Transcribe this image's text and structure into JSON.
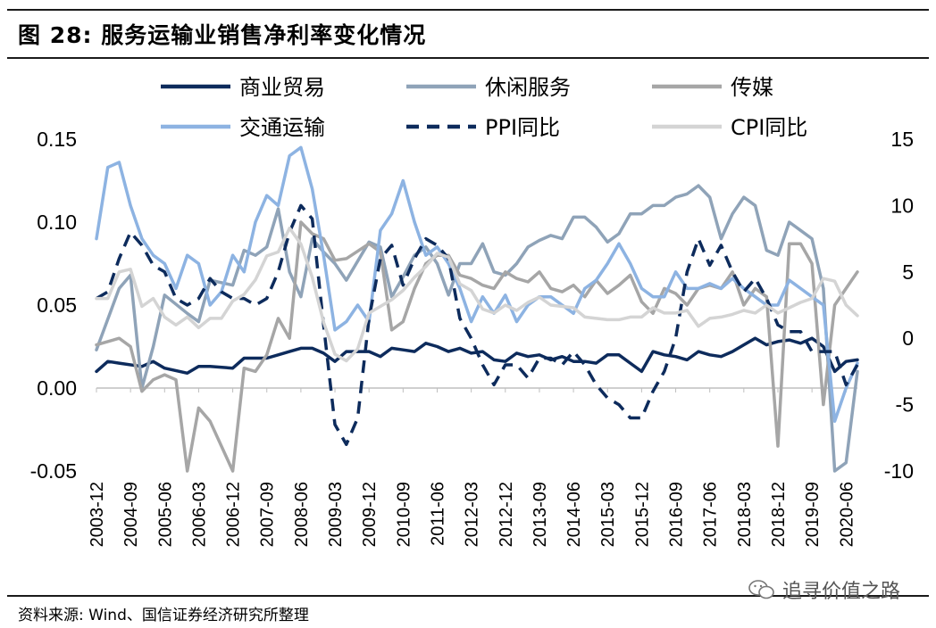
{
  "header": {
    "title": "图 28:  服务运输业销售净利率变化情况"
  },
  "footer": {
    "source": "资料来源: Wind、国信证券经济研究所整理",
    "watermark": "追寻价值之路",
    "watermark_icon": "wechat-icon"
  },
  "chart_data": {
    "type": "line",
    "x_tick_labels": [
      "2003-12",
      "2004-09",
      "2005-06",
      "2006-03",
      "2006-12",
      "2007-09",
      "2008-06",
      "2009-03",
      "2009-12",
      "2010-09",
      "2011-06",
      "2012-03",
      "2012-12",
      "2013-09",
      "2014-06",
      "2015-03",
      "2015-12",
      "2016-09",
      "2017-06",
      "2018-03",
      "2018-12",
      "2019-09",
      "2020-06"
    ],
    "x_start": "2003-12",
    "x_end": "2020-09",
    "y_left_ticks": [
      "0.15",
      "0.10",
      "0.05",
      "0.00",
      "-0.05"
    ],
    "y_left_range": [
      -0.05,
      0.15
    ],
    "y_right_ticks": [
      "15",
      "10",
      "5",
      "0",
      "-5",
      "-10"
    ],
    "y_right_range": [
      -10,
      15
    ],
    "grid": false,
    "legend_position": "top",
    "series": [
      {
        "name": "商业贸易",
        "axis": "left",
        "color": "#0d2b5c",
        "dash": "solid",
        "x": [
          "2003-12",
          "2004-03",
          "2004-06",
          "2004-12",
          "2005-03",
          "2005-06",
          "2005-12",
          "2006-03",
          "2006-06",
          "2006-12",
          "2007-03",
          "2007-06",
          "2007-09",
          "2007-12",
          "2008-03",
          "2008-06",
          "2008-09",
          "2008-12",
          "2009-03",
          "2009-06",
          "2009-12",
          "2010-03",
          "2010-06",
          "2010-09",
          "2010-12",
          "2011-03",
          "2011-06",
          "2011-09",
          "2011-12",
          "2012-03",
          "2012-06",
          "2012-09",
          "2012-12",
          "2013-03",
          "2013-06",
          "2013-09",
          "2013-12",
          "2014-03",
          "2014-06",
          "2014-09",
          "2014-12",
          "2015-03",
          "2015-06",
          "2015-09",
          "2015-12",
          "2016-03",
          "2016-06",
          "2016-09",
          "2016-12",
          "2017-03",
          "2017-06",
          "2017-09",
          "2017-12",
          "2018-03",
          "2018-06",
          "2018-09",
          "2018-12",
          "2019-03",
          "2019-06",
          "2019-09",
          "2019-12",
          "2020-03",
          "2020-06",
          "2020-09"
        ],
        "y": [
          0.01,
          0.016,
          0.015,
          0.013,
          0.016,
          0.012,
          0.009,
          0.013,
          0.013,
          0.012,
          0.018,
          0.018,
          0.018,
          0.02,
          0.022,
          0.024,
          0.024,
          0.021,
          0.016,
          0.022,
          0.022,
          0.019,
          0.024,
          0.023,
          0.022,
          0.027,
          0.025,
          0.022,
          0.024,
          0.021,
          0.022,
          0.017,
          0.016,
          0.021,
          0.019,
          0.02,
          0.017,
          0.019,
          0.016,
          0.016,
          0.015,
          0.02,
          0.02,
          0.015,
          0.01,
          0.022,
          0.02,
          0.019,
          0.017,
          0.022,
          0.02,
          0.019,
          0.022,
          0.026,
          0.03,
          0.026,
          0.028,
          0.029,
          0.027,
          0.03,
          0.025,
          0.01,
          0.016,
          0.017
        ]
      },
      {
        "name": "休闲服务",
        "axis": "left",
        "color": "#8fa3b8",
        "dash": "solid",
        "x": [
          "2003-12",
          "2004-06",
          "2004-09",
          "2004-12",
          "2005-03",
          "2005-06",
          "2005-12",
          "2006-03",
          "2006-06",
          "2006-12",
          "2007-03",
          "2007-06",
          "2007-09",
          "2007-12",
          "2008-03",
          "2008-06",
          "2008-09",
          "2008-12",
          "2009-03",
          "2009-06",
          "2009-12",
          "2010-03",
          "2010-06",
          "2010-09",
          "2010-12",
          "2011-03",
          "2011-06",
          "2011-09",
          "2011-12",
          "2012-03",
          "2012-06",
          "2012-09",
          "2012-12",
          "2013-03",
          "2013-06",
          "2013-09",
          "2013-12",
          "2014-03",
          "2014-06",
          "2014-09",
          "2014-12",
          "2015-03",
          "2015-06",
          "2015-09",
          "2015-12",
          "2016-03",
          "2016-06",
          "2016-09",
          "2016-12",
          "2017-03",
          "2017-06",
          "2017-09",
          "2017-12",
          "2018-03",
          "2018-06",
          "2018-09",
          "2018-12",
          "2019-03",
          "2019-06",
          "2019-09",
          "2019-12",
          "2020-03",
          "2020-06",
          "2020-09"
        ],
        "y": [
          0.023,
          0.06,
          0.068,
          0.0,
          0.025,
          0.056,
          0.045,
          0.04,
          0.065,
          0.062,
          0.083,
          0.08,
          0.085,
          0.108,
          0.07,
          0.055,
          0.09,
          0.082,
          0.075,
          0.065,
          0.088,
          0.085,
          0.055,
          0.067,
          0.08,
          0.085,
          0.075,
          0.056,
          0.075,
          0.075,
          0.087,
          0.07,
          0.068,
          0.075,
          0.085,
          0.089,
          0.092,
          0.09,
          0.103,
          0.103,
          0.097,
          0.088,
          0.093,
          0.105,
          0.105,
          0.11,
          0.11,
          0.115,
          0.117,
          0.122,
          0.115,
          0.09,
          0.105,
          0.115,
          0.11,
          0.083,
          0.08,
          0.1,
          0.095,
          0.09,
          0.06,
          -0.05,
          -0.045,
          0.01
        ]
      },
      {
        "name": "传媒",
        "axis": "left",
        "color": "#a6a6a6",
        "dash": "solid",
        "x": [
          "2003-12",
          "2004-06",
          "2004-09",
          "2004-12",
          "2005-03",
          "2005-06",
          "2005-09",
          "2005-12",
          "2006-03",
          "2006-06",
          "2006-12",
          "2007-03",
          "2007-06",
          "2007-09",
          "2007-12",
          "2008-03",
          "2008-06",
          "2008-09",
          "2008-12",
          "2009-03",
          "2009-06",
          "2009-12",
          "2010-03",
          "2010-06",
          "2010-09",
          "2010-12",
          "2011-03",
          "2011-06",
          "2011-09",
          "2011-12",
          "2012-03",
          "2012-06",
          "2012-09",
          "2012-12",
          "2013-03",
          "2013-06",
          "2013-09",
          "2013-12",
          "2014-03",
          "2014-06",
          "2014-09",
          "2014-12",
          "2015-03",
          "2015-06",
          "2015-09",
          "2015-12",
          "2016-03",
          "2016-06",
          "2016-09",
          "2016-12",
          "2017-03",
          "2017-06",
          "2017-09",
          "2017-12",
          "2018-03",
          "2018-06",
          "2018-09",
          "2018-12",
          "2019-03",
          "2019-06",
          "2019-09",
          "2019-12",
          "2020-03",
          "2020-06",
          "2020-09"
        ],
        "y": [
          0.026,
          0.03,
          0.025,
          -0.002,
          0.005,
          0.008,
          0.005,
          -0.05,
          -0.012,
          -0.02,
          -0.05,
          0.012,
          0.01,
          0.02,
          0.042,
          0.03,
          0.1,
          0.093,
          0.09,
          0.077,
          0.078,
          0.087,
          0.082,
          0.035,
          0.04,
          0.06,
          0.075,
          0.08,
          0.08,
          0.068,
          0.066,
          0.062,
          0.06,
          0.07,
          0.066,
          0.064,
          0.07,
          0.06,
          0.058,
          0.062,
          0.055,
          0.065,
          0.057,
          0.062,
          0.068,
          0.052,
          0.045,
          0.06,
          0.057,
          0.05,
          0.06,
          0.062,
          0.06,
          0.07,
          0.05,
          0.06,
          0.055,
          -0.035,
          0.087,
          0.087,
          0.075,
          -0.01,
          0.05,
          0.06,
          0.07
        ]
      },
      {
        "name": "交通运输",
        "axis": "left",
        "color": "#8db3e2",
        "dash": "solid",
        "x": [
          "2003-12",
          "2004-03",
          "2004-06",
          "2004-09",
          "2004-12",
          "2005-03",
          "2005-06",
          "2005-09",
          "2005-12",
          "2006-03",
          "2006-06",
          "2006-09",
          "2006-12",
          "2007-03",
          "2007-06",
          "2007-09",
          "2007-12",
          "2008-03",
          "2008-06",
          "2008-09",
          "2008-12",
          "2009-03",
          "2009-06",
          "2009-09",
          "2009-12",
          "2010-03",
          "2010-06",
          "2010-09",
          "2010-12",
          "2011-03",
          "2011-06",
          "2011-09",
          "2011-12",
          "2012-03",
          "2012-06",
          "2012-09",
          "2012-12",
          "2013-03",
          "2013-06",
          "2013-09",
          "2013-12",
          "2014-03",
          "2014-06",
          "2014-09",
          "2014-12",
          "2015-03",
          "2015-06",
          "2015-09",
          "2015-12",
          "2016-03",
          "2016-06",
          "2016-09",
          "2016-12",
          "2017-03",
          "2017-06",
          "2017-09",
          "2017-12",
          "2018-03",
          "2018-06",
          "2018-09",
          "2018-12",
          "2019-03",
          "2019-06",
          "2019-09",
          "2019-12",
          "2020-03",
          "2020-06",
          "2020-09"
        ],
        "y": [
          0.09,
          0.133,
          0.136,
          0.11,
          0.09,
          0.08,
          0.075,
          0.06,
          0.08,
          0.075,
          0.05,
          0.058,
          0.08,
          0.07,
          0.1,
          0.116,
          0.11,
          0.14,
          0.145,
          0.12,
          0.08,
          0.035,
          0.04,
          0.05,
          0.04,
          0.095,
          0.105,
          0.125,
          0.1,
          0.08,
          0.085,
          0.075,
          0.06,
          0.04,
          0.055,
          0.045,
          0.056,
          0.04,
          0.05,
          0.055,
          0.055,
          0.05,
          0.045,
          0.06,
          0.065,
          0.075,
          0.087,
          0.075,
          0.06,
          0.055,
          0.055,
          0.07,
          0.06,
          0.06,
          0.063,
          0.06,
          0.066,
          0.06,
          0.055,
          0.05,
          0.05,
          0.065,
          0.06,
          0.055,
          0.05,
          -0.02,
          0.0,
          0.015
        ]
      },
      {
        "name": "PPI同比",
        "axis": "right",
        "color": "#0d2b5c",
        "dash": "dashed",
        "x": [
          "2003-12",
          "2004-03",
          "2004-06",
          "2004-09",
          "2004-12",
          "2005-03",
          "2005-06",
          "2005-09",
          "2005-12",
          "2006-03",
          "2006-06",
          "2006-09",
          "2006-12",
          "2007-03",
          "2007-06",
          "2007-09",
          "2007-12",
          "2008-03",
          "2008-06",
          "2008-09",
          "2008-12",
          "2009-03",
          "2009-06",
          "2009-09",
          "2009-12",
          "2010-03",
          "2010-06",
          "2010-09",
          "2010-12",
          "2011-03",
          "2011-06",
          "2011-09",
          "2011-12",
          "2012-03",
          "2012-06",
          "2012-09",
          "2012-12",
          "2013-03",
          "2013-06",
          "2013-09",
          "2013-12",
          "2014-03",
          "2014-06",
          "2014-09",
          "2014-12",
          "2015-03",
          "2015-06",
          "2015-09",
          "2015-12",
          "2016-03",
          "2016-06",
          "2016-09",
          "2016-12",
          "2017-03",
          "2017-06",
          "2017-09",
          "2017-12",
          "2018-03",
          "2018-06",
          "2018-09",
          "2018-12",
          "2019-03",
          "2019-06",
          "2019-09",
          "2019-12",
          "2020-03",
          "2020-06",
          "2020-09"
        ],
        "y": [
          3.0,
          3.5,
          6.0,
          8.0,
          7.0,
          5.5,
          5.0,
          3.0,
          2.5,
          3.0,
          4.5,
          3.5,
          3.0,
          3.0,
          2.5,
          3.0,
          5.0,
          8.0,
          10.0,
          9.0,
          1.0,
          -6.5,
          -8.0,
          -6.0,
          1.5,
          6.0,
          7.0,
          4.0,
          6.0,
          7.5,
          7.0,
          6.0,
          1.5,
          0.0,
          -2.0,
          -3.5,
          -2.0,
          -2.0,
          -3.0,
          -1.5,
          -1.5,
          -2.0,
          -1.0,
          -2.0,
          -3.5,
          -4.5,
          -5.0,
          -6.0,
          -6.0,
          -4.0,
          -2.5,
          0.0,
          5.0,
          7.5,
          5.5,
          7.0,
          5.0,
          3.5,
          4.5,
          3.0,
          1.0,
          0.5,
          0.5,
          -1.0,
          -1.0,
          -1.0,
          -3.5,
          -2.0
        ]
      },
      {
        "name": "CPI同比",
        "axis": "right",
        "color": "#d4d4d4",
        "dash": "solid",
        "x": [
          "2003-12",
          "2004-03",
          "2004-06",
          "2004-09",
          "2004-12",
          "2005-03",
          "2005-06",
          "2005-09",
          "2005-12",
          "2006-03",
          "2006-06",
          "2006-09",
          "2006-12",
          "2007-03",
          "2007-06",
          "2007-09",
          "2007-12",
          "2008-03",
          "2008-06",
          "2008-09",
          "2008-12",
          "2009-03",
          "2009-06",
          "2009-09",
          "2009-12",
          "2010-03",
          "2010-06",
          "2010-09",
          "2010-12",
          "2011-03",
          "2011-06",
          "2011-09",
          "2011-12",
          "2012-03",
          "2012-06",
          "2012-09",
          "2012-12",
          "2013-03",
          "2013-06",
          "2013-09",
          "2013-12",
          "2014-03",
          "2014-06",
          "2014-09",
          "2014-12",
          "2015-03",
          "2015-06",
          "2015-09",
          "2015-12",
          "2016-03",
          "2016-06",
          "2016-09",
          "2016-12",
          "2017-03",
          "2017-06",
          "2017-09",
          "2017-12",
          "2018-03",
          "2018-06",
          "2018-09",
          "2018-12",
          "2019-03",
          "2019-06",
          "2019-09",
          "2019-12",
          "2020-03",
          "2020-06",
          "2020-09"
        ],
        "y": [
          3.0,
          3.0,
          5.0,
          5.2,
          2.4,
          3.0,
          1.6,
          1.0,
          1.6,
          0.8,
          1.5,
          1.5,
          2.8,
          3.3,
          4.4,
          6.2,
          6.5,
          8.3,
          7.1,
          4.6,
          1.2,
          -1.2,
          -1.7,
          -0.8,
          1.9,
          2.4,
          2.9,
          3.6,
          4.6,
          5.4,
          6.4,
          6.1,
          4.1,
          3.6,
          2.2,
          1.9,
          2.5,
          2.1,
          2.7,
          3.1,
          2.5,
          2.4,
          2.3,
          1.6,
          1.5,
          1.4,
          1.4,
          1.6,
          1.6,
          2.3,
          1.9,
          1.9,
          2.1,
          0.9,
          1.5,
          1.6,
          1.8,
          2.1,
          1.9,
          2.5,
          1.9,
          2.3,
          2.7,
          3.0,
          4.5,
          4.3,
          2.5,
          1.7
        ]
      }
    ]
  }
}
